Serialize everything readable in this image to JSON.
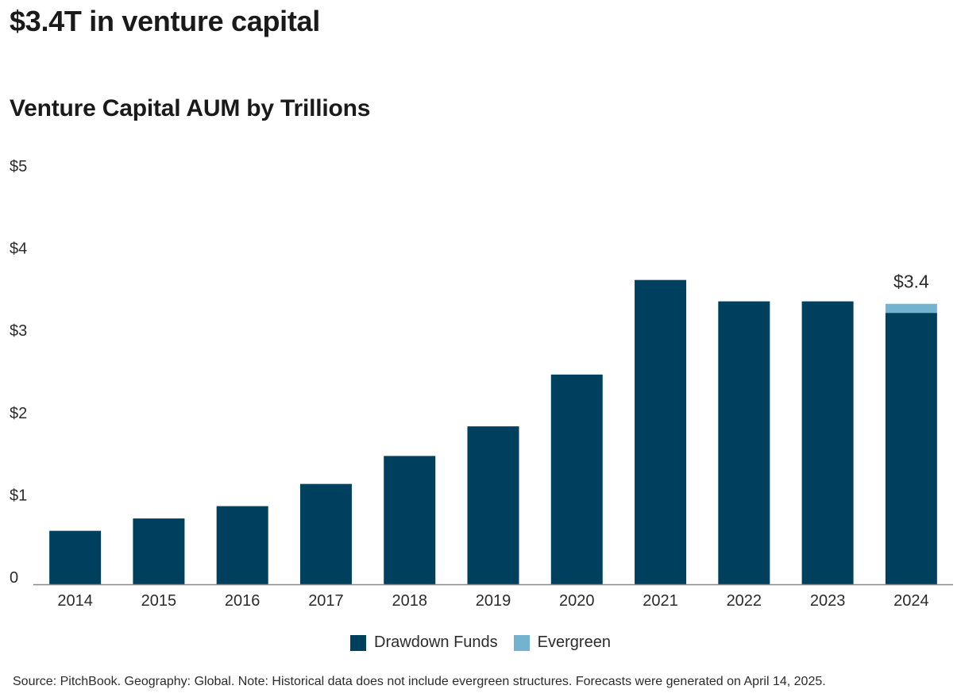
{
  "page": {
    "headline": "$3.4T in venture capital",
    "source_note": "Source: PitchBook. Geography: Global. Note: Historical data does not include evergreen structures. Forecasts were generated on April 14, 2025."
  },
  "colors": {
    "drawdown": "#00405f",
    "evergreen": "#74b3d0",
    "axis": "#8a8a8a",
    "text": "#2b2b2b"
  },
  "chart_data": {
    "type": "bar",
    "stacked": true,
    "title": "Venture Capital AUM by Trillions",
    "xlabel": "",
    "ylabel": "",
    "categories": [
      "2014",
      "2015",
      "2016",
      "2017",
      "2018",
      "2019",
      "2020",
      "2021",
      "2022",
      "2023",
      "2024"
    ],
    "series": [
      {
        "name": "Drawdown Funds",
        "color": "#00405f",
        "values": [
          0.65,
          0.8,
          0.95,
          1.22,
          1.56,
          1.92,
          2.55,
          3.7,
          3.44,
          3.44,
          3.3
        ]
      },
      {
        "name": "Evergreen",
        "color": "#74b3d0",
        "values": [
          0,
          0,
          0,
          0,
          0,
          0,
          0,
          0,
          0,
          0,
          0.11
        ]
      }
    ],
    "ylim": [
      0,
      5
    ],
    "yticks": [
      {
        "value": 0,
        "label": "0"
      },
      {
        "value": 1,
        "label": "$1"
      },
      {
        "value": 2,
        "label": "$2"
      },
      {
        "value": 3,
        "label": "$3"
      },
      {
        "value": 4,
        "label": "$4"
      },
      {
        "value": 5,
        "label": "$5"
      }
    ],
    "grid": false,
    "legend_position": "bottom-center",
    "annotations": [
      {
        "category": "2024",
        "text": "$3.4"
      }
    ]
  }
}
